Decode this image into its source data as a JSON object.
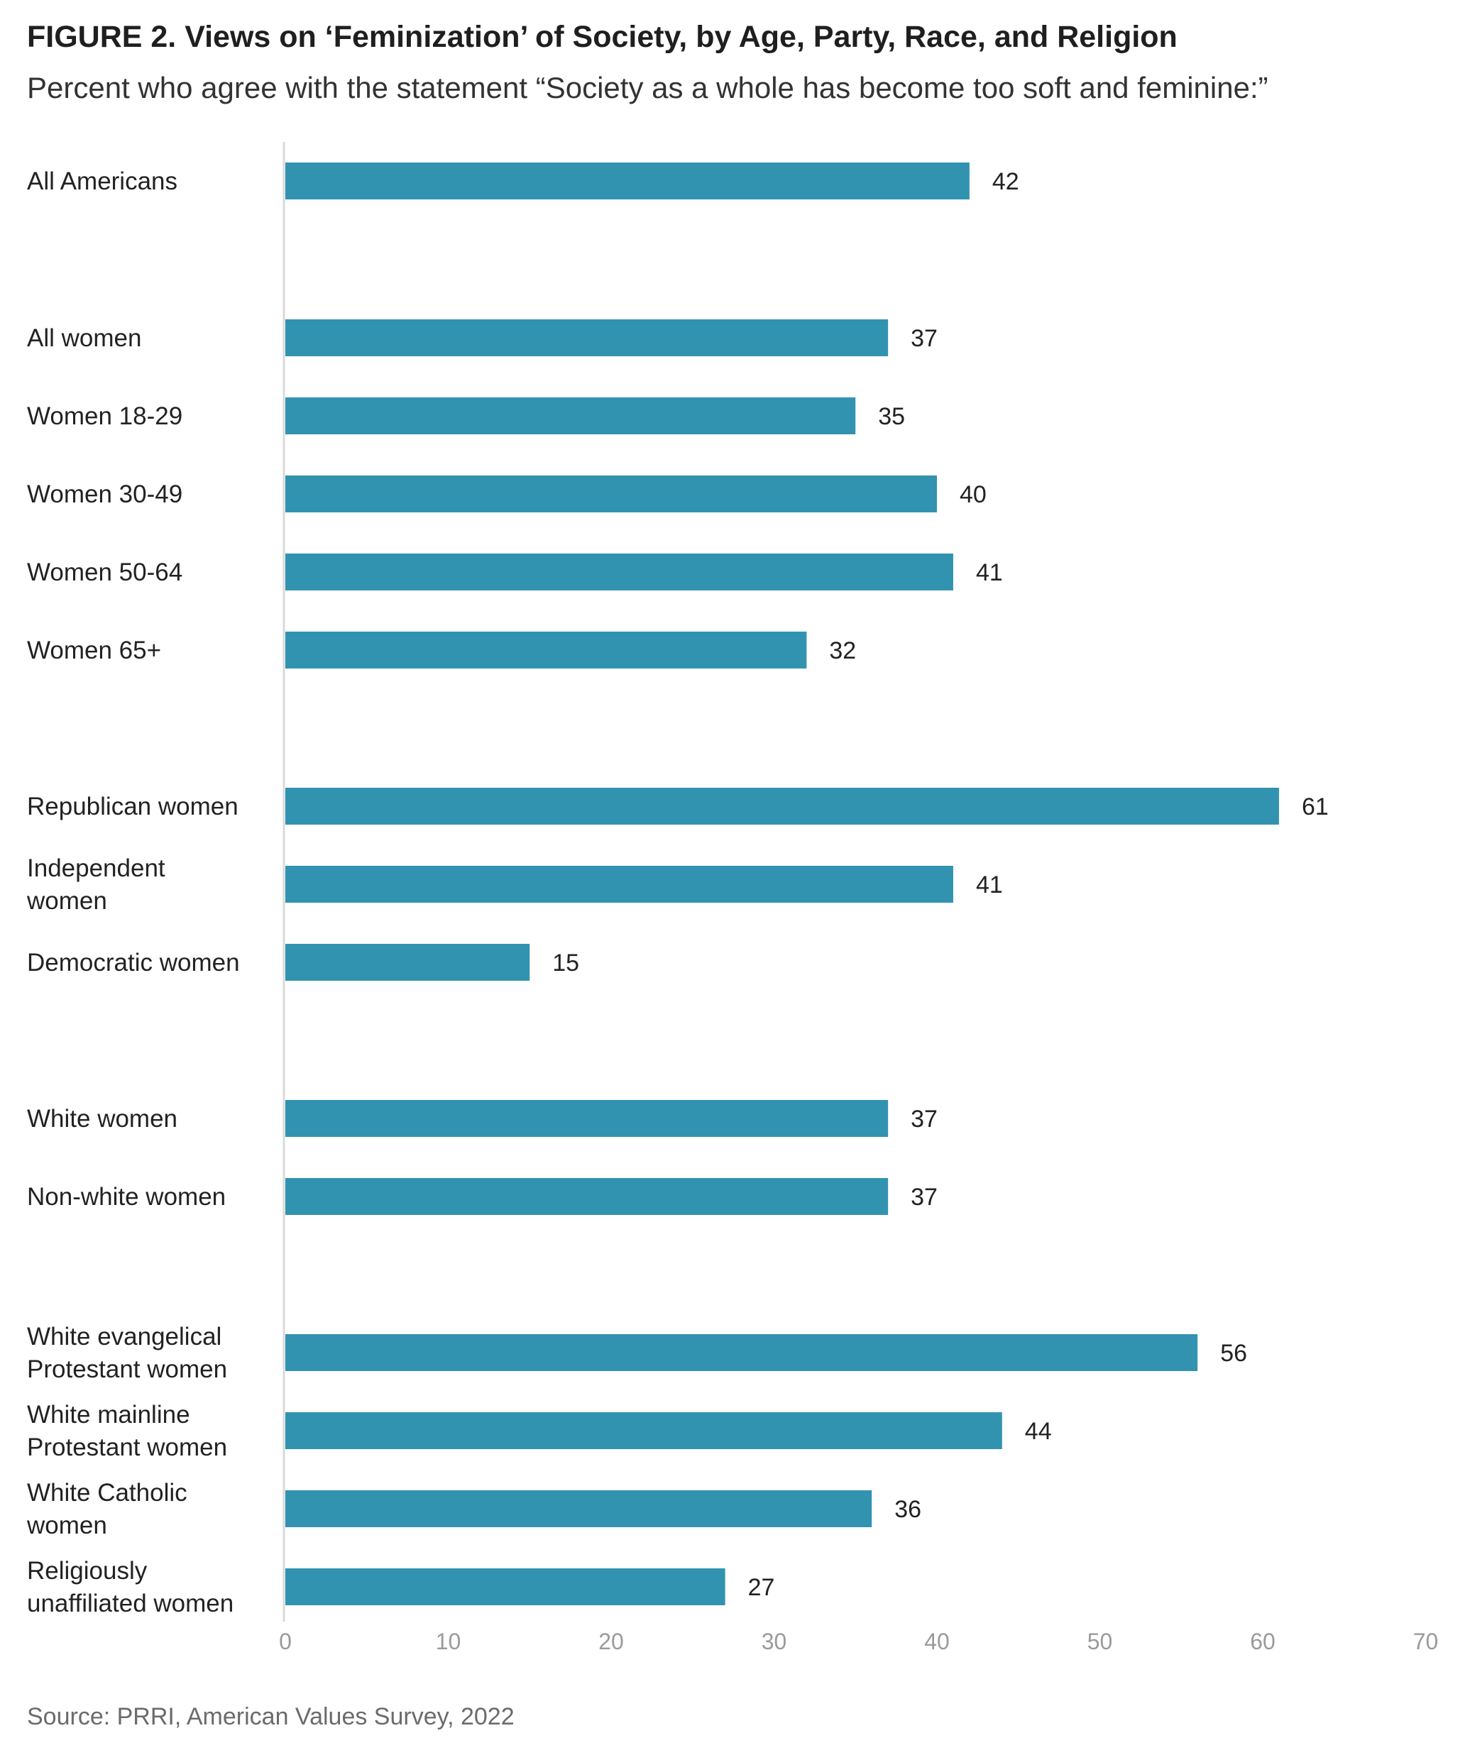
{
  "chart_data": {
    "type": "bar",
    "orientation": "horizontal",
    "title": "FIGURE 2.  Views on ‘Feminization’ of Society, by Age, Party, Race, and Religion",
    "subtitle": "Percent who agree with the statement “Society as a whole has become too soft and feminine:”",
    "source": "Source: PRRI, American Values Survey, 2022",
    "bar_color": "#3193b0",
    "xlim": [
      0,
      70
    ],
    "xticks": [
      0,
      10,
      20,
      30,
      40,
      50,
      60,
      70
    ],
    "grid": false,
    "categories": [
      {
        "lines": [
          "All Americans"
        ],
        "value": 42,
        "label": "42"
      },
      {
        "lines": [
          "All women"
        ],
        "value": 37,
        "label": "37"
      },
      {
        "lines": [
          "Women 18-29"
        ],
        "value": 35,
        "label": "35"
      },
      {
        "lines": [
          "Women 30-49"
        ],
        "value": 40,
        "label": "40"
      },
      {
        "lines": [
          "Women 50-64"
        ],
        "value": 41,
        "label": "41"
      },
      {
        "lines": [
          "Women 65+"
        ],
        "value": 32,
        "label": "32"
      },
      {
        "lines": [
          "Republican women"
        ],
        "value": 61,
        "label": "61"
      },
      {
        "lines": [
          "Independent",
          "women"
        ],
        "value": 41,
        "label": "41"
      },
      {
        "lines": [
          "Democratic women"
        ],
        "value": 15,
        "label": "15"
      },
      {
        "lines": [
          "White women"
        ],
        "value": 37,
        "label": "37"
      },
      {
        "lines": [
          "Non-white women"
        ],
        "value": 37,
        "label": "37"
      },
      {
        "lines": [
          "White evangelical",
          "Protestant women"
        ],
        "value": 56,
        "label": "56"
      },
      {
        "lines": [
          "White mainline",
          "Protestant women"
        ],
        "value": 44,
        "label": "44"
      },
      {
        "lines": [
          "White Catholic",
          "women"
        ],
        "value": 36,
        "label": "36"
      },
      {
        "lines": [
          "Religiously",
          "unaffiliated women"
        ],
        "value": 27,
        "label": "27"
      }
    ]
  }
}
